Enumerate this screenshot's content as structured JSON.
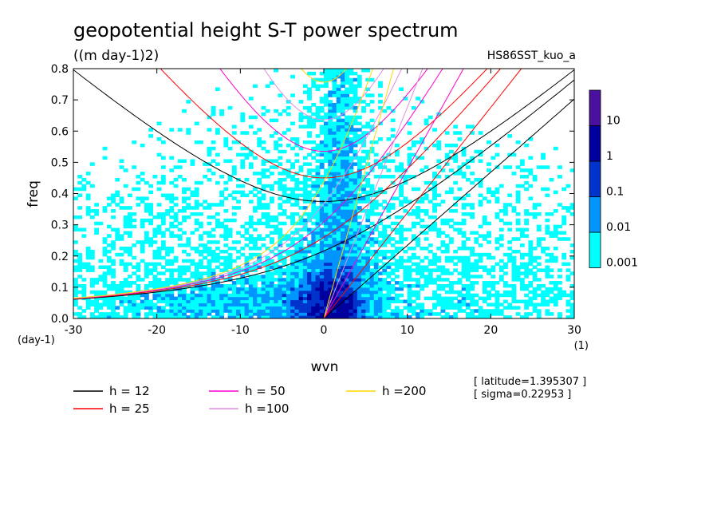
{
  "chart_data": {
    "type": "heatmap",
    "title": "geopotential height S-T power spectrum",
    "units_label": "((m day-1)2)",
    "run_label": "HS86SST_kuo_a",
    "xlabel": "wvn",
    "ylabel": "freq",
    "x_unit_label": "(1)",
    "y_unit_label": "(day-1)",
    "xlim": [
      -30,
      30
    ],
    "ylim": [
      0,
      0.8
    ],
    "x_ticks": [
      -30,
      -20,
      -10,
      0,
      10,
      20,
      30
    ],
    "y_ticks": [
      0.0,
      0.1,
      0.2,
      0.3,
      0.4,
      0.5,
      0.6,
      0.7,
      0.8
    ],
    "colorbar": {
      "levels": [
        "0.001",
        "0.01",
        "0.1",
        "1",
        "10"
      ],
      "colors": [
        "#00ffff",
        "#0095ff",
        "#0033cc",
        "#00009e",
        "#4a10a0"
      ]
    },
    "curves": [
      {
        "name": "h = 12",
        "h": 12,
        "color": "#000000"
      },
      {
        "name": "h = 25",
        "h": 25,
        "color": "#ff0000"
      },
      {
        "name": "h = 50",
        "h": 50,
        "color": "#ff00cc"
      },
      {
        "name": "h =100",
        "h": 100,
        "color": "#e08fe0"
      },
      {
        "name": "h =200",
        "h": 200,
        "color": "#ffd700"
      }
    ],
    "annotations": {
      "latitude": "[ latitude=1.395307 ]",
      "sigma": "[ sigma=0.22953 ]"
    }
  }
}
